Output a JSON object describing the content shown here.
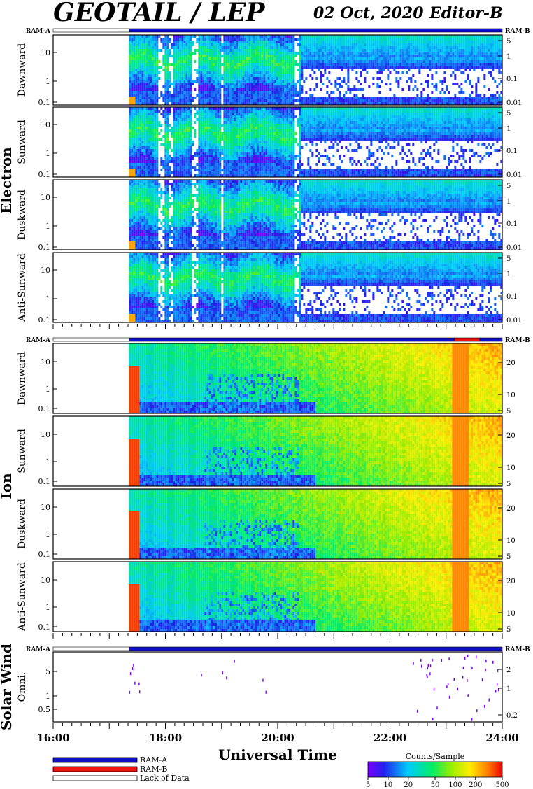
{
  "header": {
    "title": "GEOTAIL / LEP",
    "date": "02 Oct, 2020",
    "editor": "Editor-B"
  },
  "groups": {
    "electron": "Electron",
    "ion": "Ion",
    "solar_wind": "Solar Wind"
  },
  "ram_labels": {
    "a": "RAM-A",
    "b": "RAM-B"
  },
  "legend": {
    "ram_a": "RAM-A",
    "ram_b": "RAM-B",
    "lack": "Lack of Data",
    "colors": {
      "ram_a": "#1010cc",
      "ram_b": "#ee1111",
      "lack": "#ffffff"
    }
  },
  "colorbar": {
    "title": "Counts/Sample",
    "ticks": [
      "5",
      "10",
      "20",
      "50",
      "100",
      "200",
      "500"
    ],
    "tick_values": [
      5,
      10,
      20,
      50,
      100,
      200,
      500
    ],
    "range": [
      5,
      500
    ],
    "scale": "log"
  },
  "chart_data": {
    "type": "heatmap",
    "xlabel": "Universal Time",
    "x_ticks": [
      "16:00",
      "18:00",
      "20:00",
      "22:00",
      "24:00"
    ],
    "x_range_hours": [
      16,
      24
    ],
    "data_start_hour": 17.35,
    "electron_panels": [
      {
        "ylabel": "Dawnward",
        "left_ticks": [
          "10",
          "1",
          "0.1"
        ],
        "right_ticks": [
          "5",
          "1",
          "0.1",
          "0.01"
        ]
      },
      {
        "ylabel": "Sunward",
        "left_ticks": [
          "10",
          "1",
          "0.1"
        ],
        "right_ticks": [
          "5",
          "1",
          "0.1",
          "0.01"
        ]
      },
      {
        "ylabel": "Duskward",
        "left_ticks": [
          "10",
          "1",
          "0.1"
        ],
        "right_ticks": [
          "5",
          "1",
          "0.1",
          "0.01"
        ]
      },
      {
        "ylabel": "Anti-Sunward",
        "left_ticks": [
          "10",
          "1",
          "0.1"
        ],
        "right_ticks": [
          "5",
          "1",
          "0.1",
          "0.01"
        ]
      }
    ],
    "ion_panels": [
      {
        "ylabel": "Dawnward",
        "left_ticks": [
          "10",
          "1",
          "0.1"
        ],
        "right_ticks": [
          "20",
          "10",
          "5"
        ]
      },
      {
        "ylabel": "Sunward",
        "left_ticks": [
          "10",
          "1",
          "0.1"
        ],
        "right_ticks": [
          "20",
          "10",
          "5"
        ]
      },
      {
        "ylabel": "Duskward",
        "left_ticks": [
          "10",
          "1",
          "0.1"
        ],
        "right_ticks": [
          "20",
          "10",
          "5"
        ]
      },
      {
        "ylabel": "Anti-Sunward",
        "left_ticks": [
          "10",
          "1",
          "0.1"
        ],
        "right_ticks": [
          "20",
          "10",
          "5"
        ]
      }
    ],
    "solar_wind_panel": {
      "ylabel": "Omni.",
      "left_ticks": [
        "5",
        "1",
        "0.5"
      ],
      "right_ticks": [
        "2",
        "1",
        "0.2"
      ]
    },
    "ram_bars": [
      {
        "segments": [
          {
            "start": 16.0,
            "end": 17.35,
            "mode": "lack"
          },
          {
            "start": 17.35,
            "end": 24.0,
            "mode": "ram_a"
          }
        ]
      },
      {
        "segments": [
          {
            "start": 16.0,
            "end": 17.35,
            "mode": "lack"
          },
          {
            "start": 17.35,
            "end": 23.15,
            "mode": "ram_a"
          },
          {
            "start": 23.15,
            "end": 23.6,
            "mode": "ram_b"
          },
          {
            "start": 23.6,
            "end": 24.0,
            "mode": "ram_a"
          }
        ]
      },
      {
        "segments": [
          {
            "start": 16.0,
            "end": 17.35,
            "mode": "lack"
          },
          {
            "start": 17.35,
            "end": 24.0,
            "mode": "ram_a"
          }
        ]
      }
    ]
  }
}
